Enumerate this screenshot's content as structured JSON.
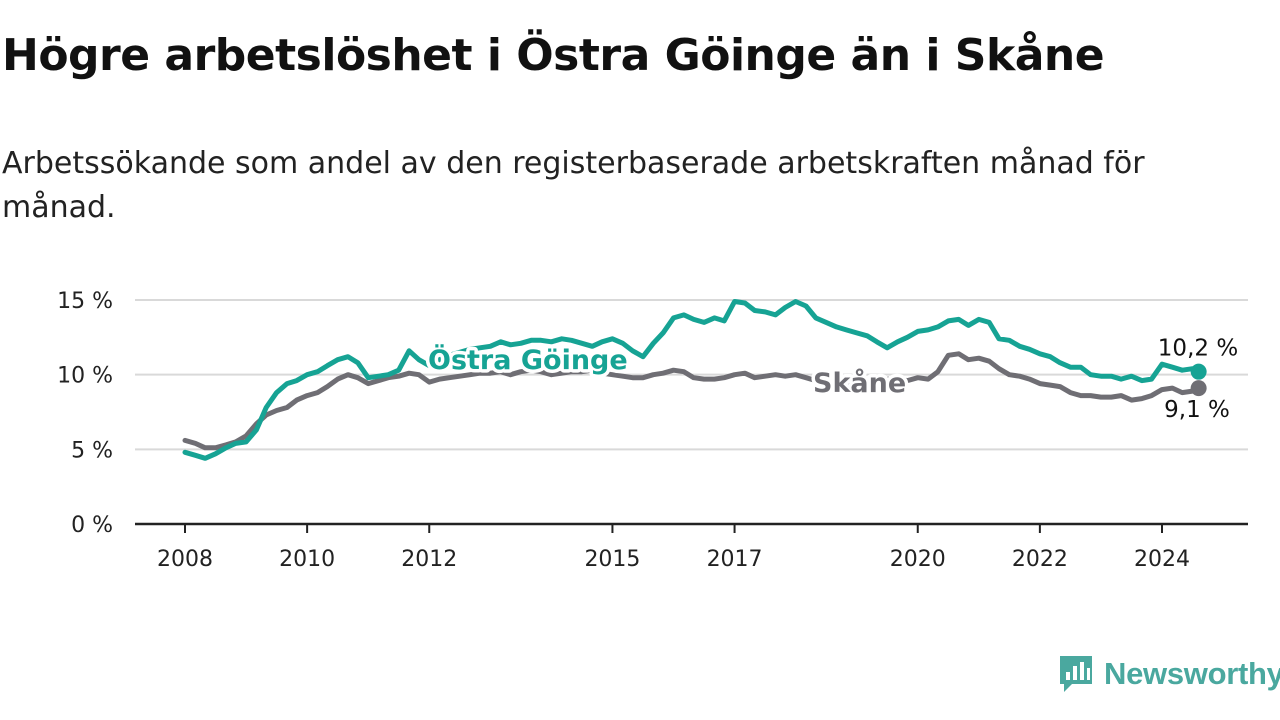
{
  "title": "Högre arbetslöshet i Östra Göinge än i Skåne",
  "subtitle": "Arbetssökande som andel av den registerbaserade arbetskraften månad för månad.",
  "brand": {
    "name": "Newsworthy",
    "color": "#4aa89f",
    "icon": "newsworthy-logo-icon"
  },
  "colors": {
    "ostra_goinge": "#16a394",
    "skane": "#6f6e74",
    "grid": "#d9d9d9",
    "axis": "#222222"
  },
  "chart_data": {
    "type": "line",
    "title": "Högre arbetslöshet i Östra Göinge än i Skåne",
    "ylabel": "",
    "xlabel": "",
    "ylim": [
      0,
      15
    ],
    "xlim": [
      2008,
      2025.6
    ],
    "y_ticks": [
      0,
      5,
      10,
      15
    ],
    "y_tick_labels": [
      "0 %",
      "5 %",
      "10 %",
      "15 %"
    ],
    "x_ticks": [
      2008,
      2010,
      2012,
      2015,
      2017,
      2020,
      2022,
      2024
    ],
    "x_tick_labels": [
      "2008",
      "2010",
      "2012",
      "2015",
      "2017",
      "2020",
      "2022",
      "2024"
    ],
    "grid": true,
    "series": [
      {
        "name": "Östra Göinge",
        "label": "Östra Göinge",
        "end_label": "10,2 %",
        "points": [
          [
            2008.0,
            4.8
          ],
          [
            2008.17,
            4.6
          ],
          [
            2008.33,
            4.4
          ],
          [
            2008.5,
            4.7
          ],
          [
            2008.67,
            5.1
          ],
          [
            2008.83,
            5.4
          ],
          [
            2009.0,
            5.5
          ],
          [
            2009.17,
            6.3
          ],
          [
            2009.33,
            7.8
          ],
          [
            2009.5,
            8.8
          ],
          [
            2009.67,
            9.4
          ],
          [
            2009.83,
            9.6
          ],
          [
            2010.0,
            10.0
          ],
          [
            2010.17,
            10.2
          ],
          [
            2010.33,
            10.6
          ],
          [
            2010.5,
            11.0
          ],
          [
            2010.67,
            11.2
          ],
          [
            2010.83,
            10.8
          ],
          [
            2011.0,
            9.8
          ],
          [
            2011.17,
            9.9
          ],
          [
            2011.33,
            10.0
          ],
          [
            2011.5,
            10.3
          ],
          [
            2011.67,
            11.6
          ],
          [
            2011.83,
            11.0
          ],
          [
            2012.0,
            10.6
          ],
          [
            2012.17,
            11.0
          ],
          [
            2012.33,
            11.3
          ],
          [
            2012.5,
            11.5
          ],
          [
            2012.67,
            11.7
          ],
          [
            2012.83,
            11.8
          ],
          [
            2013.0,
            11.9
          ],
          [
            2013.17,
            12.2
          ],
          [
            2013.33,
            12.0
          ],
          [
            2013.5,
            12.1
          ],
          [
            2013.67,
            12.3
          ],
          [
            2013.83,
            12.3
          ],
          [
            2014.0,
            12.2
          ],
          [
            2014.17,
            12.4
          ],
          [
            2014.33,
            12.3
          ],
          [
            2014.5,
            12.1
          ],
          [
            2014.67,
            11.9
          ],
          [
            2014.83,
            12.2
          ],
          [
            2015.0,
            12.4
          ],
          [
            2015.17,
            12.1
          ],
          [
            2015.33,
            11.6
          ],
          [
            2015.5,
            11.2
          ],
          [
            2015.67,
            12.1
          ],
          [
            2015.83,
            12.8
          ],
          [
            2016.0,
            13.8
          ],
          [
            2016.17,
            14.0
          ],
          [
            2016.33,
            13.7
          ],
          [
            2016.5,
            13.5
          ],
          [
            2016.67,
            13.8
          ],
          [
            2016.83,
            13.6
          ],
          [
            2017.0,
            14.9
          ],
          [
            2017.17,
            14.8
          ],
          [
            2017.33,
            14.3
          ],
          [
            2017.5,
            14.2
          ],
          [
            2017.67,
            14.0
          ],
          [
            2017.83,
            14.5
          ],
          [
            2018.0,
            14.9
          ],
          [
            2018.17,
            14.6
          ],
          [
            2018.33,
            13.8
          ],
          [
            2018.5,
            13.5
          ],
          [
            2018.67,
            13.2
          ],
          [
            2018.83,
            13.0
          ],
          [
            2019.0,
            12.8
          ],
          [
            2019.17,
            12.6
          ],
          [
            2019.33,
            12.2
          ],
          [
            2019.5,
            11.8
          ],
          [
            2019.67,
            12.2
          ],
          [
            2019.83,
            12.5
          ],
          [
            2020.0,
            12.9
          ],
          [
            2020.17,
            13.0
          ],
          [
            2020.33,
            13.2
          ],
          [
            2020.5,
            13.6
          ],
          [
            2020.67,
            13.7
          ],
          [
            2020.83,
            13.3
          ],
          [
            2021.0,
            13.7
          ],
          [
            2021.17,
            13.5
          ],
          [
            2021.33,
            12.4
          ],
          [
            2021.5,
            12.3
          ],
          [
            2021.67,
            11.9
          ],
          [
            2021.83,
            11.7
          ],
          [
            2022.0,
            11.4
          ],
          [
            2022.17,
            11.2
          ],
          [
            2022.33,
            10.8
          ],
          [
            2022.5,
            10.5
          ],
          [
            2022.67,
            10.5
          ],
          [
            2022.83,
            10.0
          ],
          [
            2023.0,
            9.9
          ],
          [
            2023.17,
            9.9
          ],
          [
            2023.33,
            9.7
          ],
          [
            2023.5,
            9.9
          ],
          [
            2023.67,
            9.6
          ],
          [
            2023.83,
            9.7
          ],
          [
            2024.0,
            10.7
          ],
          [
            2024.17,
            10.5
          ],
          [
            2024.33,
            10.3
          ],
          [
            2024.5,
            10.4
          ],
          [
            2024.6,
            10.2
          ]
        ]
      },
      {
        "name": "Skåne",
        "label": "Skåne",
        "end_label": "9,1 %",
        "points": [
          [
            2008.0,
            5.6
          ],
          [
            2008.17,
            5.4
          ],
          [
            2008.33,
            5.1
          ],
          [
            2008.5,
            5.1
          ],
          [
            2008.67,
            5.3
          ],
          [
            2008.83,
            5.5
          ],
          [
            2009.0,
            5.9
          ],
          [
            2009.17,
            6.7
          ],
          [
            2009.33,
            7.3
          ],
          [
            2009.5,
            7.6
          ],
          [
            2009.67,
            7.8
          ],
          [
            2009.83,
            8.3
          ],
          [
            2010.0,
            8.6
          ],
          [
            2010.17,
            8.8
          ],
          [
            2010.33,
            9.2
          ],
          [
            2010.5,
            9.7
          ],
          [
            2010.67,
            10.0
          ],
          [
            2010.83,
            9.8
          ],
          [
            2011.0,
            9.4
          ],
          [
            2011.17,
            9.6
          ],
          [
            2011.33,
            9.8
          ],
          [
            2011.5,
            9.9
          ],
          [
            2011.67,
            10.1
          ],
          [
            2011.83,
            10.0
          ],
          [
            2012.0,
            9.5
          ],
          [
            2012.17,
            9.7
          ],
          [
            2012.33,
            9.8
          ],
          [
            2012.5,
            9.9
          ],
          [
            2012.67,
            10.0
          ],
          [
            2012.83,
            10.1
          ],
          [
            2013.0,
            10.1
          ],
          [
            2013.17,
            10.2
          ],
          [
            2013.33,
            10.0
          ],
          [
            2013.5,
            10.2
          ],
          [
            2013.67,
            10.3
          ],
          [
            2013.83,
            10.2
          ],
          [
            2014.0,
            10.0
          ],
          [
            2014.17,
            10.1
          ],
          [
            2014.33,
            10.2
          ],
          [
            2014.5,
            10.2
          ],
          [
            2014.67,
            10.3
          ],
          [
            2014.83,
            10.1
          ],
          [
            2015.0,
            10.0
          ],
          [
            2015.17,
            9.9
          ],
          [
            2015.33,
            9.8
          ],
          [
            2015.5,
            9.8
          ],
          [
            2015.67,
            10.0
          ],
          [
            2015.83,
            10.1
          ],
          [
            2016.0,
            10.3
          ],
          [
            2016.17,
            10.2
          ],
          [
            2016.33,
            9.8
          ],
          [
            2016.5,
            9.7
          ],
          [
            2016.67,
            9.7
          ],
          [
            2016.83,
            9.8
          ],
          [
            2017.0,
            10.0
          ],
          [
            2017.17,
            10.1
          ],
          [
            2017.33,
            9.8
          ],
          [
            2017.5,
            9.9
          ],
          [
            2017.67,
            10.0
          ],
          [
            2017.83,
            9.9
          ],
          [
            2018.0,
            10.0
          ],
          [
            2018.17,
            9.8
          ],
          [
            2018.33,
            9.6
          ],
          [
            2018.5,
            9.5
          ],
          [
            2018.67,
            9.6
          ],
          [
            2018.83,
            9.5
          ],
          [
            2019.0,
            9.6
          ],
          [
            2019.17,
            9.5
          ],
          [
            2019.33,
            9.6
          ],
          [
            2019.5,
            9.7
          ],
          [
            2019.67,
            9.7
          ],
          [
            2019.83,
            9.6
          ],
          [
            2020.0,
            9.8
          ],
          [
            2020.17,
            9.7
          ],
          [
            2020.33,
            10.2
          ],
          [
            2020.5,
            11.3
          ],
          [
            2020.67,
            11.4
          ],
          [
            2020.83,
            11.0
          ],
          [
            2021.0,
            11.1
          ],
          [
            2021.17,
            10.9
          ],
          [
            2021.33,
            10.4
          ],
          [
            2021.5,
            10.0
          ],
          [
            2021.67,
            9.9
          ],
          [
            2021.83,
            9.7
          ],
          [
            2022.0,
            9.4
          ],
          [
            2022.17,
            9.3
          ],
          [
            2022.33,
            9.2
          ],
          [
            2022.5,
            8.8
          ],
          [
            2022.67,
            8.6
          ],
          [
            2022.83,
            8.6
          ],
          [
            2023.0,
            8.5
          ],
          [
            2023.17,
            8.5
          ],
          [
            2023.33,
            8.6
          ],
          [
            2023.5,
            8.3
          ],
          [
            2023.67,
            8.4
          ],
          [
            2023.83,
            8.6
          ],
          [
            2024.0,
            9.0
          ],
          [
            2024.17,
            9.1
          ],
          [
            2024.33,
            8.8
          ],
          [
            2024.5,
            8.9
          ],
          [
            2024.6,
            9.1
          ]
        ]
      }
    ]
  }
}
